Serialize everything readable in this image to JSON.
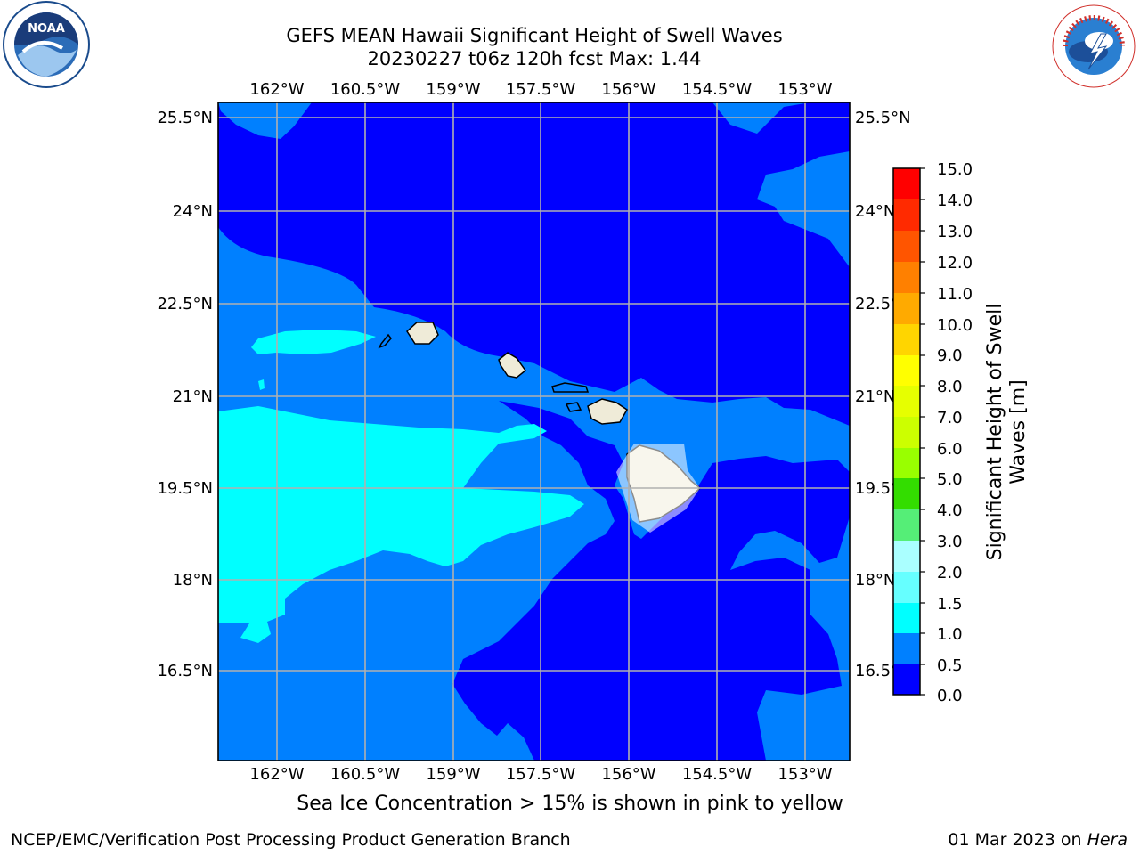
{
  "header": {
    "title": "GEFS MEAN Hawaii Significant Height of Swell Waves",
    "subtitle": "20230227 t06z 120h fcst   Max: 1.44"
  },
  "map": {
    "lon_ticks": [
      "162°W",
      "160.5°W",
      "159°W",
      "157.5°W",
      "156°W",
      "154.5°W",
      "153°W"
    ],
    "lat_ticks": [
      "25.5°N",
      "24°N",
      "22.5°N",
      "21°N",
      "19.5°N",
      "18°N",
      "16.5°N"
    ],
    "colors": {
      "level_0_05": "#0000ff",
      "level_05_1": "#0080ff",
      "level_1_15": "#00ffff",
      "land": "#efebd8",
      "grid": "#b0b0b0"
    }
  },
  "colorbar": {
    "label": "Significant Height of Swell Waves [m]",
    "ticks": [
      "15.0",
      "14.0",
      "13.0",
      "12.0",
      "11.0",
      "10.0",
      "9.0",
      "8.0",
      "7.0",
      "6.0",
      "5.0",
      "4.0",
      "3.0",
      "2.0",
      "1.5",
      "1.0",
      "0.5",
      "0.0"
    ],
    "colors": [
      "#ff0000",
      "#ff2a00",
      "#ff5500",
      "#ff8000",
      "#ffaa00",
      "#ffd500",
      "#ffff00",
      "#e6ff00",
      "#ccff00",
      "#99ff00",
      "#33dd00",
      "#00dd00",
      "#55ee77",
      "#aaffff",
      "#66ffff",
      "#00ffff",
      "#0080ff",
      "#0000ff"
    ]
  },
  "logos": {
    "left": "NOAA",
    "left_ring": "NATIONAL OCEANIC AND ATMOSPHERIC ADMINISTRATION · U.S. DEPARTMENT OF COMMERCE",
    "right_ring": "NATIONAL WEATHER SERVICE"
  },
  "footer": {
    "note": "Sea Ice Concentration > 15% is shown in pink to yellow",
    "credit": "NCEP/EMC/Verification Post Processing Product Generation Branch",
    "date_prefix": "01 Mar 2023 on ",
    "machine": "Hera"
  }
}
